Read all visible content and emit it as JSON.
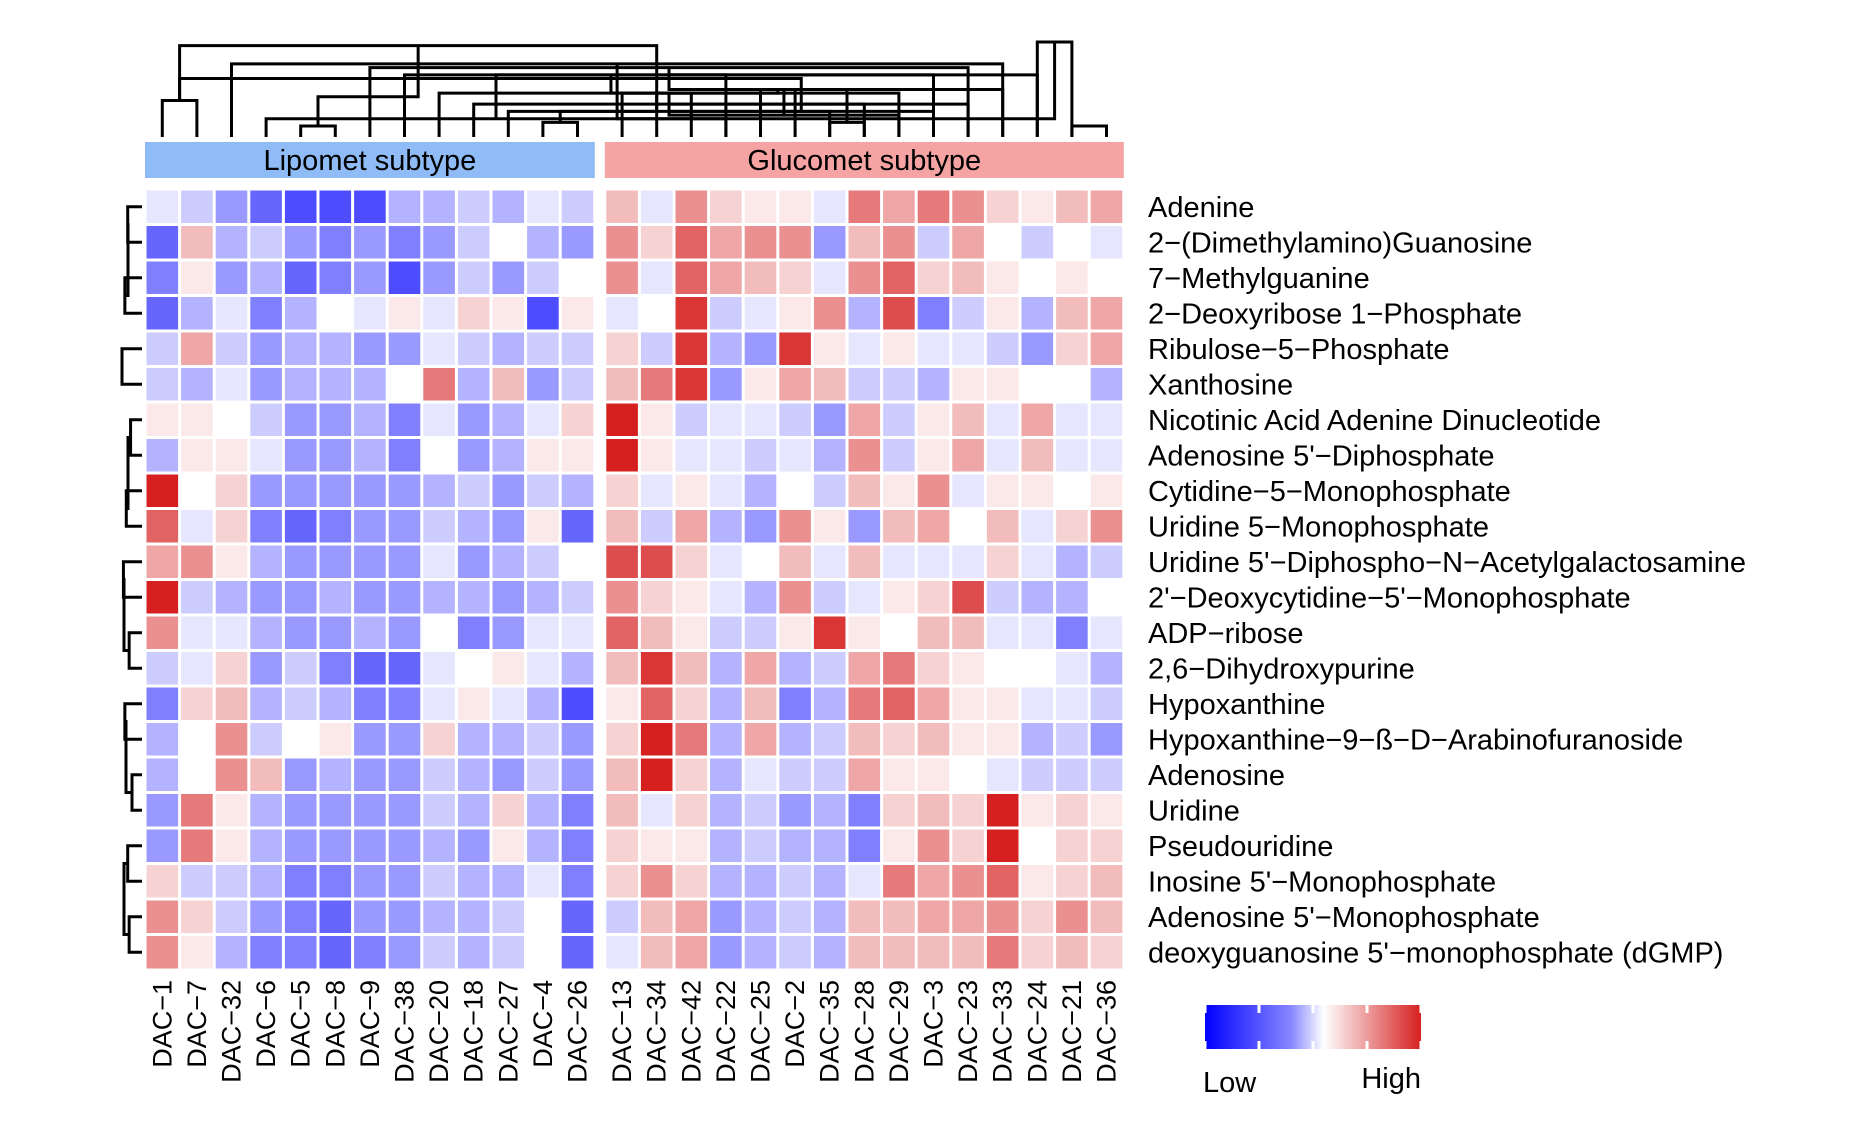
{
  "chart_data": {
    "type": "heatmap",
    "groups": [
      {
        "label": "Lipomet subtype",
        "color": "#8fbcf6",
        "count": 13
      },
      {
        "label": "Glucomet subtype",
        "color": "#f6a3a3",
        "count": 15
      }
    ],
    "columns": [
      "DAC−1",
      "DAC−7",
      "DAC−32",
      "DAC−6",
      "DAC−5",
      "DAC−8",
      "DAC−9",
      "DAC−38",
      "DAC−20",
      "DAC−18",
      "DAC−27",
      "DAC−4",
      "DAC−26",
      "DAC−13",
      "DAC−34",
      "DAC−42",
      "DAC−22",
      "DAC−25",
      "DAC−2",
      "DAC−35",
      "DAC−28",
      "DAC−29",
      "DAC−3",
      "DAC−23",
      "DAC−33",
      "DAC−24",
      "DAC−21",
      "DAC−36"
    ],
    "rows": [
      "Adenine",
      "2−(Dimethylamino)Guanosine",
      "7−Methylguanine",
      "2−Deoxyribose 1−Phosphate",
      "Ribulose−5−Phosphate",
      "Xanthosine",
      "Nicotinic Acid Adenine Dinucleotide",
      "Adenosine 5'−Diphosphate",
      "Cytidine−5−Monophosphate",
      "Uridine 5−Monophosphate",
      "Uridine 5'−Diphospho−N−Acetylgalactosamine",
      "2'−Deoxycytidine−5'−Monophosphate",
      "ADP−ribose",
      "2,6−Dihydroxypurine",
      "Hypoxanthine",
      "Hypoxanthine−9−ß−D−Arabinofuranoside",
      "Adenosine",
      "Uridine",
      "Pseudouridine",
      "Inosine 5'−Monophosphate",
      "Adenosine 5'−Monophosphate",
      "deoxyguanosine 5'−monophosphate (dGMP)"
    ],
    "values": [
      [
        -0.1,
        -0.2,
        -0.4,
        -0.6,
        -0.7,
        -0.7,
        -0.7,
        -0.3,
        -0.3,
        -0.2,
        -0.3,
        -0.1,
        -0.2,
        0.3,
        -0.1,
        0.5,
        0.2,
        0.1,
        0.1,
        -0.1,
        0.6,
        0.4,
        0.6,
        0.5,
        0.2,
        0.1,
        0.3,
        0.4
      ],
      [
        -0.6,
        0.3,
        -0.3,
        -0.2,
        -0.4,
        -0.5,
        -0.4,
        -0.5,
        -0.4,
        -0.2,
        0.0,
        -0.3,
        -0.4,
        0.5,
        0.2,
        0.7,
        0.4,
        0.5,
        0.5,
        -0.4,
        0.3,
        0.5,
        -0.2,
        0.4,
        0.0,
        -0.2,
        0.0,
        -0.1
      ],
      [
        -0.5,
        0.1,
        -0.4,
        -0.3,
        -0.6,
        -0.5,
        -0.4,
        -0.7,
        -0.4,
        -0.2,
        -0.4,
        -0.2,
        0.0,
        0.5,
        -0.1,
        0.7,
        0.4,
        0.3,
        0.2,
        -0.1,
        0.5,
        0.7,
        0.2,
        0.3,
        0.1,
        0.0,
        0.1,
        0.0
      ],
      [
        -0.6,
        -0.3,
        -0.1,
        -0.5,
        -0.3,
        0.0,
        -0.1,
        0.1,
        -0.1,
        0.2,
        0.1,
        -0.7,
        0.1,
        -0.1,
        0.0,
        0.9,
        -0.2,
        -0.1,
        0.1,
        0.5,
        -0.3,
        0.8,
        -0.5,
        -0.2,
        0.1,
        -0.3,
        0.3,
        0.4
      ],
      [
        -0.2,
        0.4,
        -0.2,
        -0.4,
        -0.3,
        -0.3,
        -0.4,
        -0.4,
        -0.1,
        -0.2,
        -0.3,
        -0.2,
        -0.2,
        0.2,
        -0.2,
        0.9,
        -0.3,
        -0.4,
        0.9,
        0.1,
        -0.1,
        0.1,
        -0.1,
        -0.1,
        -0.2,
        -0.4,
        0.2,
        0.4
      ],
      [
        -0.2,
        -0.3,
        -0.1,
        -0.4,
        -0.3,
        -0.3,
        -0.3,
        0.0,
        0.6,
        -0.3,
        0.3,
        -0.4,
        -0.2,
        0.3,
        0.6,
        0.9,
        -0.4,
        0.1,
        0.4,
        0.3,
        -0.2,
        -0.2,
        -0.3,
        0.1,
        0.1,
        0.0,
        0.0,
        -0.3
      ],
      [
        0.1,
        0.1,
        0.0,
        -0.2,
        -0.4,
        -0.4,
        -0.3,
        -0.5,
        -0.1,
        -0.4,
        -0.3,
        -0.1,
        0.2,
        1.0,
        0.1,
        -0.2,
        -0.1,
        -0.1,
        -0.2,
        -0.4,
        0.4,
        -0.2,
        0.1,
        0.3,
        -0.1,
        0.4,
        -0.1,
        -0.1
      ],
      [
        -0.3,
        0.1,
        0.1,
        -0.1,
        -0.4,
        -0.4,
        -0.3,
        -0.5,
        0.0,
        -0.4,
        -0.3,
        0.1,
        0.1,
        1.0,
        0.1,
        -0.1,
        -0.1,
        -0.2,
        -0.1,
        -0.3,
        0.5,
        -0.2,
        0.1,
        0.4,
        -0.1,
        0.3,
        -0.1,
        -0.1
      ],
      [
        1.0,
        0.0,
        0.2,
        -0.4,
        -0.4,
        -0.4,
        -0.4,
        -0.4,
        -0.3,
        -0.2,
        -0.4,
        -0.2,
        -0.3,
        0.2,
        -0.1,
        0.1,
        -0.1,
        -0.3,
        0.0,
        -0.2,
        0.3,
        0.1,
        0.5,
        -0.1,
        0.1,
        0.1,
        0.0,
        0.1
      ],
      [
        0.7,
        -0.1,
        0.2,
        -0.5,
        -0.6,
        -0.5,
        -0.4,
        -0.4,
        -0.2,
        -0.3,
        -0.4,
        0.1,
        -0.6,
        0.3,
        -0.2,
        0.4,
        -0.3,
        -0.4,
        0.5,
        0.1,
        -0.4,
        0.3,
        0.4,
        0.0,
        0.3,
        -0.1,
        0.2,
        0.5
      ],
      [
        0.4,
        0.5,
        0.1,
        -0.3,
        -0.4,
        -0.4,
        -0.4,
        -0.4,
        -0.1,
        -0.4,
        -0.3,
        -0.2,
        0.0,
        0.8,
        0.8,
        0.2,
        -0.1,
        0.0,
        0.3,
        -0.1,
        0.3,
        -0.1,
        -0.1,
        -0.1,
        0.2,
        -0.1,
        -0.3,
        -0.2
      ],
      [
        1.0,
        -0.2,
        -0.3,
        -0.4,
        -0.4,
        -0.3,
        -0.4,
        -0.4,
        -0.3,
        -0.3,
        -0.4,
        -0.3,
        -0.2,
        0.5,
        0.2,
        0.1,
        -0.1,
        -0.3,
        0.5,
        -0.2,
        -0.1,
        0.1,
        0.2,
        0.8,
        -0.2,
        -0.3,
        -0.3,
        0.0
      ],
      [
        0.5,
        -0.1,
        -0.1,
        -0.3,
        -0.4,
        -0.4,
        -0.3,
        -0.4,
        0.0,
        -0.5,
        -0.4,
        -0.1,
        -0.1,
        0.7,
        0.3,
        0.1,
        -0.2,
        -0.2,
        0.1,
        0.9,
        0.1,
        0.0,
        0.3,
        0.3,
        -0.1,
        -0.1,
        -0.5,
        -0.1
      ],
      [
        -0.2,
        -0.1,
        0.2,
        -0.4,
        -0.2,
        -0.5,
        -0.6,
        -0.6,
        -0.1,
        0.0,
        0.1,
        -0.1,
        -0.3,
        0.3,
        0.9,
        0.3,
        -0.3,
        0.4,
        -0.3,
        -0.2,
        0.4,
        0.6,
        0.2,
        0.1,
        0.0,
        0.0,
        -0.1,
        -0.3
      ],
      [
        -0.5,
        0.2,
        0.3,
        -0.3,
        -0.2,
        -0.3,
        -0.5,
        -0.5,
        -0.1,
        0.1,
        -0.1,
        -0.3,
        -0.7,
        0.1,
        0.7,
        0.2,
        -0.3,
        0.3,
        -0.5,
        -0.3,
        0.6,
        0.7,
        0.4,
        0.1,
        0.1,
        -0.1,
        -0.1,
        -0.2
      ],
      [
        -0.3,
        0.0,
        0.5,
        -0.2,
        0.0,
        0.1,
        -0.4,
        -0.4,
        0.2,
        -0.3,
        -0.3,
        -0.2,
        -0.4,
        0.2,
        1.0,
        0.6,
        -0.3,
        0.4,
        -0.3,
        -0.2,
        0.3,
        0.2,
        0.3,
        0.1,
        0.1,
        -0.3,
        -0.2,
        -0.4
      ],
      [
        -0.3,
        0.0,
        0.5,
        0.3,
        -0.4,
        -0.3,
        -0.4,
        -0.4,
        -0.2,
        -0.3,
        -0.4,
        -0.2,
        -0.4,
        0.3,
        1.0,
        0.2,
        -0.3,
        -0.1,
        -0.2,
        -0.2,
        0.4,
        0.1,
        0.1,
        0.0,
        -0.1,
        -0.2,
        -0.2,
        -0.2
      ],
      [
        -0.4,
        0.6,
        0.1,
        -0.3,
        -0.4,
        -0.4,
        -0.4,
        -0.4,
        -0.2,
        -0.3,
        0.2,
        -0.3,
        -0.5,
        0.3,
        -0.1,
        0.2,
        -0.3,
        -0.2,
        -0.4,
        -0.3,
        -0.5,
        0.2,
        0.3,
        0.2,
        1.0,
        0.1,
        0.2,
        0.1
      ],
      [
        -0.4,
        0.6,
        0.1,
        -0.3,
        -0.4,
        -0.4,
        -0.4,
        -0.4,
        -0.3,
        -0.4,
        0.1,
        -0.3,
        -0.5,
        0.2,
        0.1,
        0.1,
        -0.3,
        -0.2,
        -0.3,
        -0.3,
        -0.5,
        0.1,
        0.5,
        0.2,
        1.0,
        0.0,
        0.2,
        0.2
      ],
      [
        0.2,
        -0.2,
        -0.2,
        -0.3,
        -0.5,
        -0.5,
        -0.4,
        -0.4,
        -0.2,
        -0.3,
        -0.3,
        -0.1,
        -0.5,
        0.2,
        0.5,
        0.2,
        -0.3,
        -0.3,
        -0.2,
        -0.3,
        -0.1,
        0.6,
        0.4,
        0.5,
        0.7,
        0.1,
        0.2,
        0.3
      ],
      [
        0.5,
        0.2,
        -0.2,
        -0.4,
        -0.5,
        -0.6,
        -0.4,
        -0.4,
        -0.3,
        -0.3,
        -0.2,
        0.0,
        -0.6,
        -0.2,
        0.3,
        0.4,
        -0.4,
        -0.3,
        -0.2,
        -0.3,
        0.3,
        0.3,
        0.4,
        0.4,
        0.5,
        0.2,
        0.5,
        0.3
      ],
      [
        0.5,
        0.1,
        -0.3,
        -0.5,
        -0.5,
        -0.6,
        -0.5,
        -0.4,
        -0.2,
        -0.3,
        -0.2,
        0.0,
        -0.6,
        -0.1,
        0.3,
        0.4,
        -0.4,
        -0.3,
        -0.2,
        -0.3,
        0.3,
        0.3,
        0.3,
        0.3,
        0.6,
        0.2,
        0.3,
        0.2
      ]
    ],
    "col_dendrogram": [
      [
        0,
        1,
        50,
        0
      ],
      [
        4,
        5,
        15,
        1
      ],
      [
        3,
        16,
        25,
        2
      ],
      [
        12,
        11,
        20,
        3
      ],
      [
        10,
        19,
        35,
        4
      ],
      [
        9,
        20,
        45,
        5
      ],
      [
        8,
        21,
        60,
        6
      ],
      [
        7,
        22,
        85,
        7
      ],
      [
        6,
        23,
        95,
        8
      ],
      [
        2,
        24,
        100,
        9
      ],
      [
        25,
        26,
        130,
        10
      ],
      [
        13,
        15,
        60,
        11
      ],
      [
        14,
        28,
        125,
        12
      ],
      [
        17,
        18,
        65,
        13
      ],
      [
        16,
        30,
        85,
        14
      ],
      [
        19,
        20,
        20,
        15
      ],
      [
        21,
        32,
        30,
        16
      ],
      [
        22,
        33,
        35,
        17
      ],
      [
        23,
        34,
        45,
        18
      ],
      [
        24,
        35,
        65,
        19
      ],
      [
        25,
        36,
        85,
        20
      ],
      [
        26,
        27,
        15,
        21
      ],
      [
        37,
        38,
        25,
        22
      ],
      [
        31,
        39,
        35,
        23
      ],
      [
        29,
        40,
        55,
        24
      ],
      [
        41,
        42,
        60,
        25
      ],
      [
        43,
        44,
        65,
        26
      ],
      [
        28,
        45,
        80,
        27
      ]
    ],
    "row_dendrogram": [
      [
        0,
        1,
        10,
        0
      ],
      [
        2,
        3,
        12,
        1
      ],
      [
        4,
        5,
        14,
        2
      ],
      [
        6,
        7,
        8,
        3
      ],
      [
        8,
        9,
        11,
        4
      ],
      [
        10,
        11,
        13,
        5
      ],
      [
        12,
        13,
        9,
        6
      ],
      [
        14,
        15,
        12,
        7
      ],
      [
        16,
        17,
        7,
        8
      ],
      [
        18,
        19,
        10,
        9
      ],
      [
        20,
        21,
        9,
        10
      ]
    ],
    "legend": {
      "low_label": "Low",
      "high_label": "High",
      "low_color": "#0000ff",
      "mid_color": "#ffffff",
      "high_color": "#d62020"
    }
  }
}
